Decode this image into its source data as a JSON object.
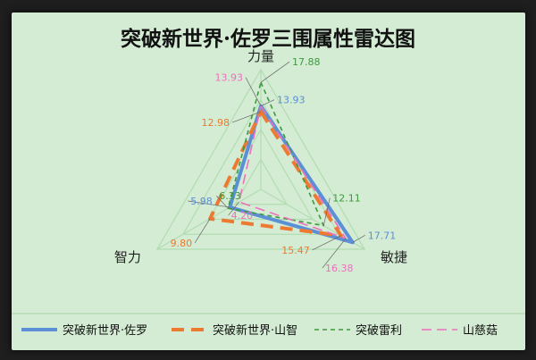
{
  "chart_data": {
    "type": "radar",
    "title": "突破新世界·佐罗三围属性雷达图",
    "axes": [
      "力量",
      "敏捷",
      "智力"
    ],
    "rmax": 20,
    "grid_levels": [
      5,
      10,
      15,
      20
    ],
    "grid_color": "#b2dcb2",
    "background": "#d3ecd3",
    "legend_position": "bottom",
    "series": [
      {
        "name": "突破新世界·佐罗",
        "values": [
          13.93,
          17.71,
          5.98
        ],
        "labels": [
          "13.93",
          "17.71",
          "5.98"
        ],
        "color": "#5b8fd6",
        "dash": "solid",
        "width": 4
      },
      {
        "name": "突破新世界·山智",
        "values": [
          12.98,
          15.47,
          9.8
        ],
        "labels": [
          "12.98",
          "15.47",
          "9.80"
        ],
        "color": "#ec7a30",
        "dash": "long",
        "width": 4
      },
      {
        "name": "突破雷利",
        "values": [
          17.88,
          12.11,
          6.33
        ],
        "labels": [
          "17.88",
          "12.11",
          "6.33"
        ],
        "color": "#3f9a3f",
        "dash": "short",
        "width": 1.6
      },
      {
        "name": "山慈菇",
        "values": [
          13.93,
          16.38,
          4.2
        ],
        "labels": [
          "13.93",
          "16.38",
          "4.20"
        ],
        "color": "#ee6fbd",
        "dash": "medium",
        "width": 1.6
      }
    ]
  }
}
